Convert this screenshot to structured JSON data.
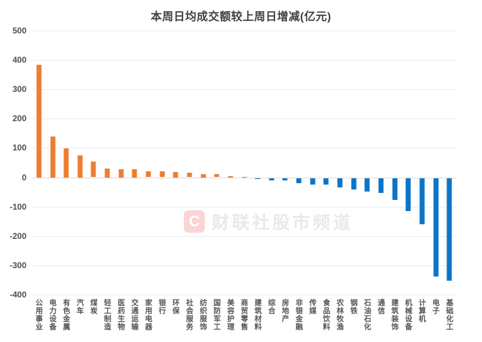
{
  "title": "本周日均成交额较上周日增减(亿元)",
  "watermark": {
    "logo_letter": "C",
    "text": "财联社股市频道"
  },
  "colors": {
    "positive": "#ED7D31",
    "negative": "#0B74C9",
    "grid": "#ececec",
    "zero_line": "#dcdcdc",
    "axis_text": "#4c4e55",
    "title_text": "#404040"
  },
  "chart_data": {
    "type": "bar",
    "title": "本周日均成交额较上周日增减(亿元)",
    "ylabel": "",
    "xlabel": "",
    "unit": "亿元",
    "ylim": [
      -400,
      500
    ],
    "yticks": [
      500,
      400,
      300,
      200,
      100,
      0,
      -100,
      -200,
      -300,
      -400
    ],
    "grid": true,
    "legend_position": "none",
    "categories": [
      "公用事业",
      "电力设备",
      "有色金属",
      "汽车",
      "煤炭",
      "轻工制造",
      "医药生物",
      "交通运输",
      "家用电器",
      "银行",
      "环保",
      "社会服务",
      "纺织服饰",
      "国防军工",
      "美容护理",
      "商贸零售",
      "建筑材料",
      "综合",
      "房地产",
      "非银金融",
      "传媒",
      "食品饮料",
      "农林牧渔",
      "钢铁",
      "石油石化",
      "通信",
      "建筑装饰",
      "机械设备",
      "计算机",
      "电子",
      "基础化工"
    ],
    "values": [
      383,
      140,
      98,
      76,
      53,
      31,
      28,
      27,
      21,
      20,
      19,
      15,
      12,
      11,
      3,
      1,
      -1,
      -9,
      -8,
      -17,
      -22,
      -23,
      -33,
      -38,
      -46,
      -51,
      -74,
      -113,
      -158,
      -335,
      -350
    ]
  }
}
